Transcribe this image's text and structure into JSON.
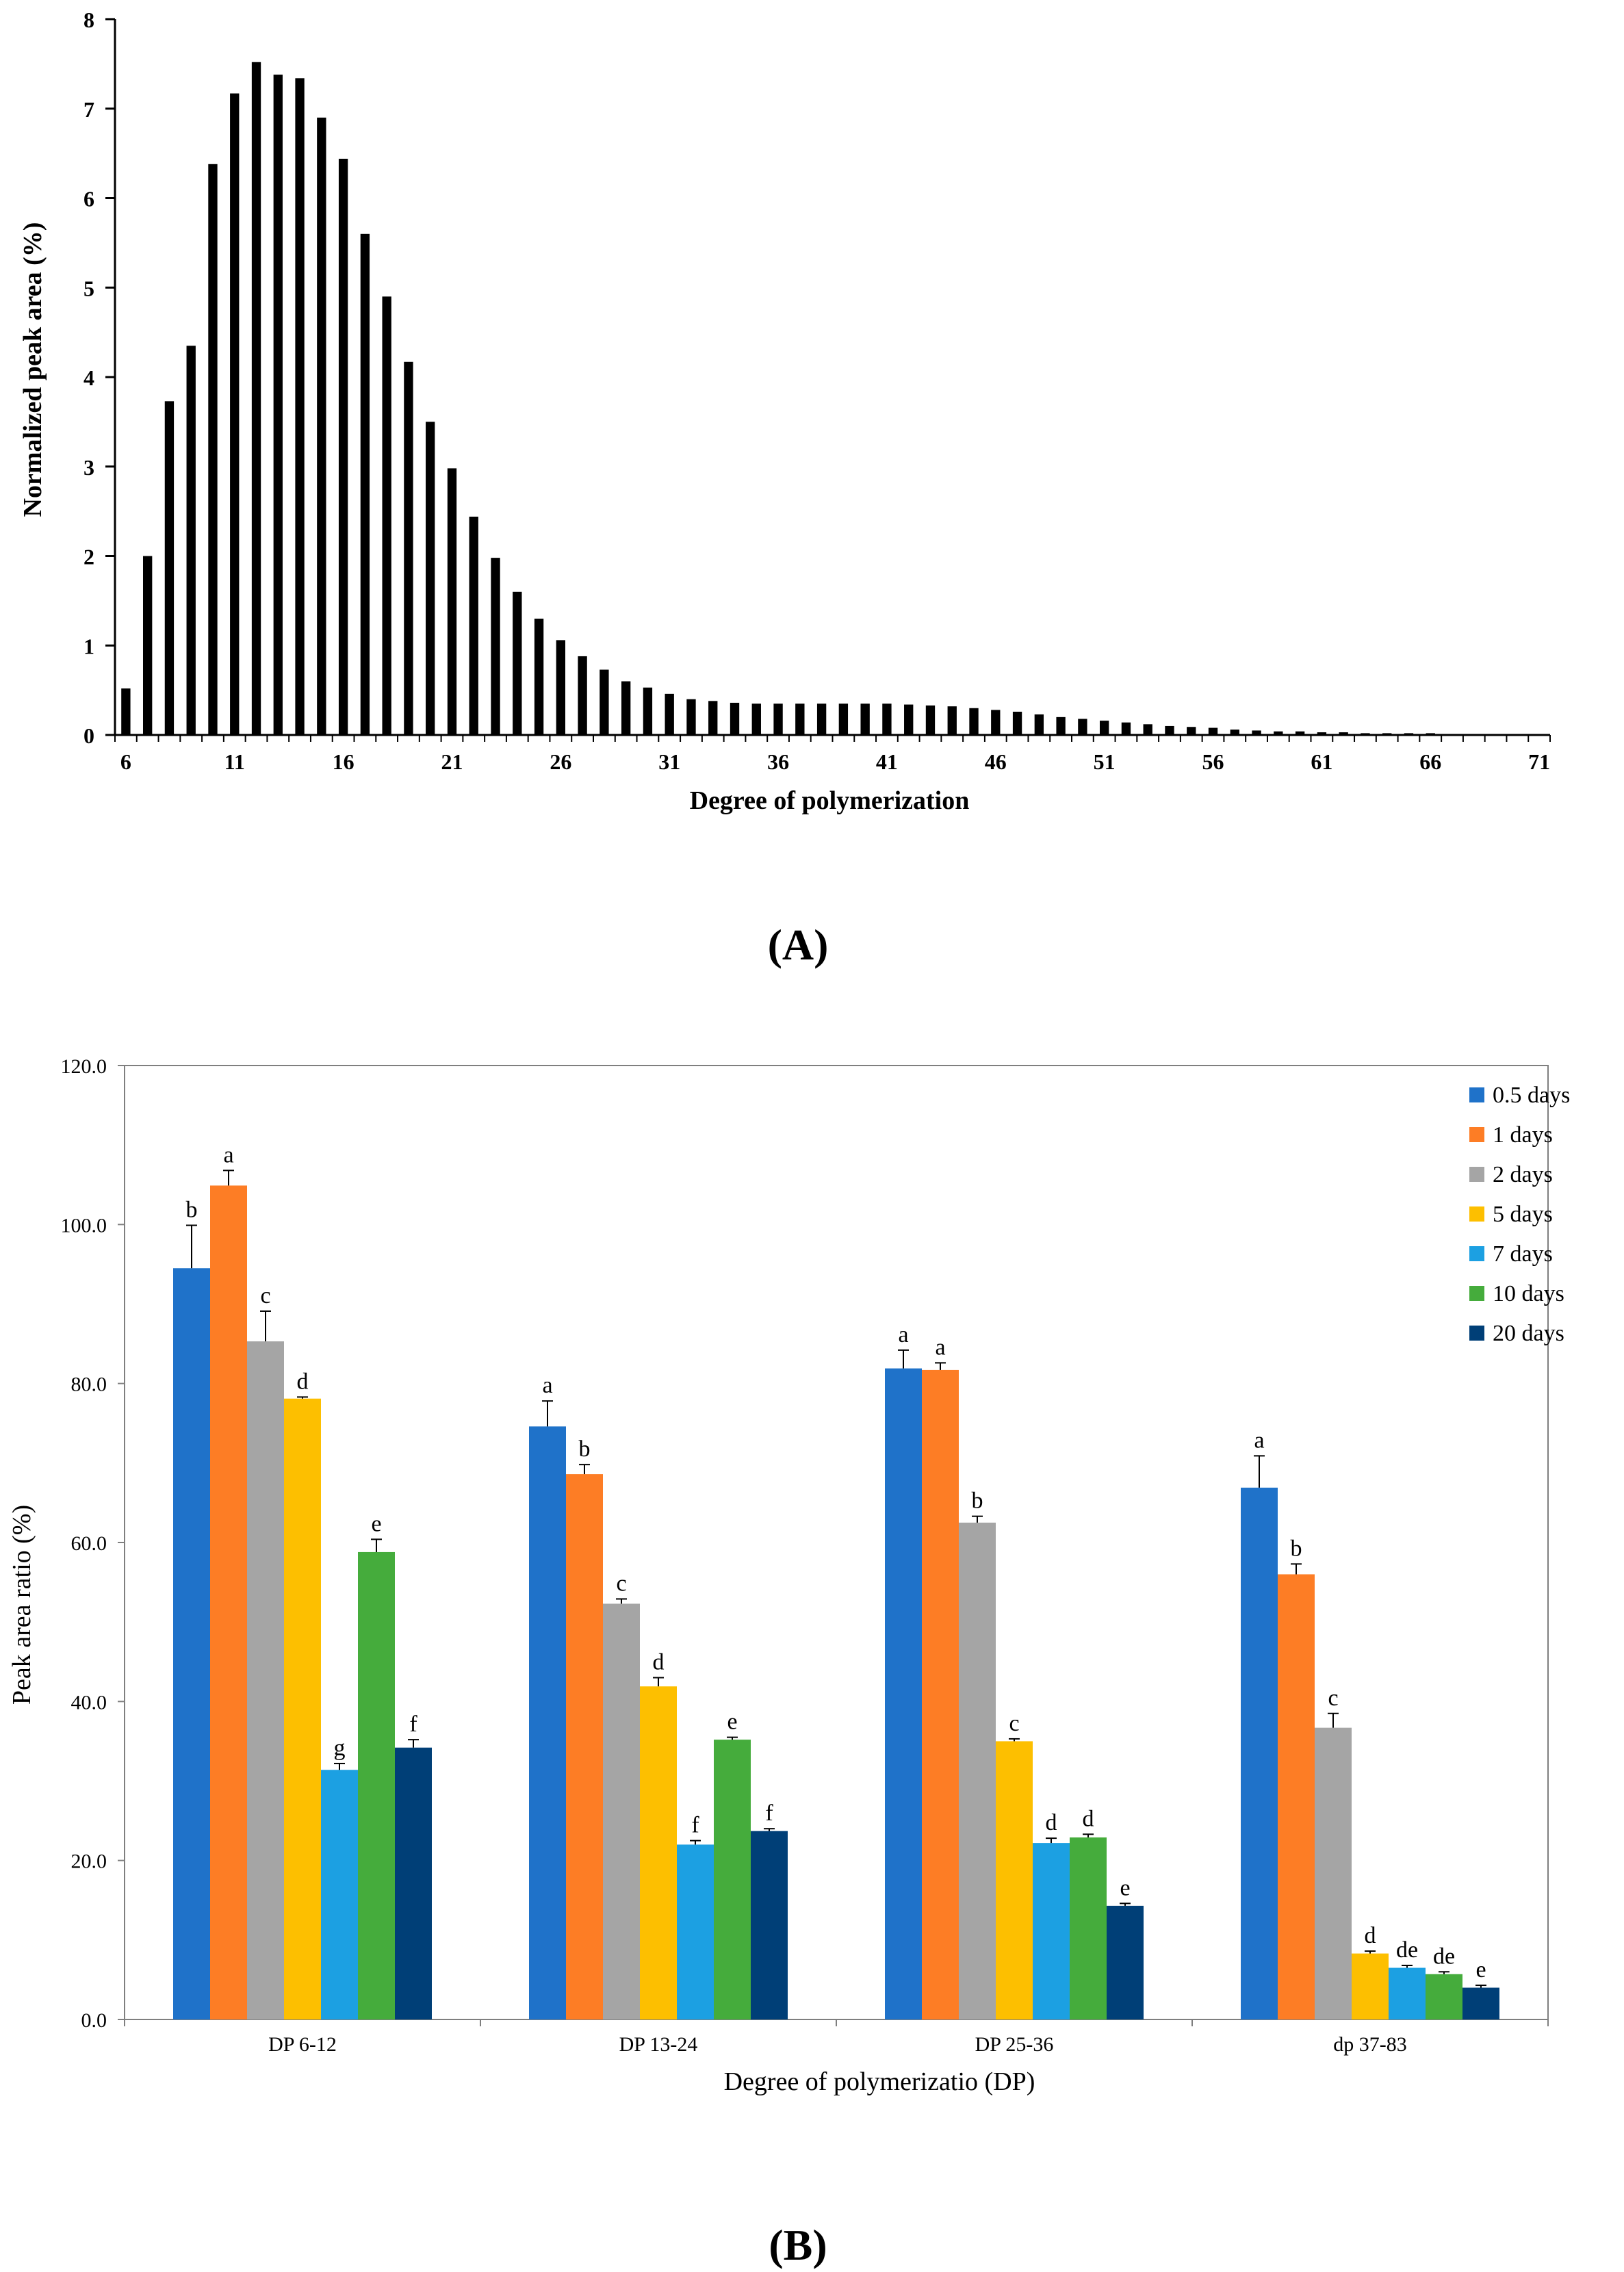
{
  "chart_data": [
    {
      "panel": "A",
      "type": "bar",
      "xlabel": "Degree of polymerization",
      "ylabel": "Normalized peak area (%)",
      "ylim": [
        0,
        8
      ],
      "yticks": [
        "0",
        "1",
        "2",
        "3",
        "4",
        "5",
        "6",
        "7",
        "8"
      ],
      "xtick_labels": [
        "6",
        "11",
        "16",
        "21",
        "26",
        "31",
        "36",
        "41",
        "46",
        "51",
        "56",
        "61",
        "66",
        "71"
      ],
      "categories": [
        6,
        7,
        8,
        9,
        10,
        11,
        12,
        13,
        14,
        15,
        16,
        17,
        18,
        19,
        20,
        21,
        22,
        23,
        24,
        25,
        26,
        27,
        28,
        29,
        30,
        31,
        32,
        33,
        34,
        35,
        36,
        37,
        38,
        39,
        40,
        41,
        42,
        43,
        44,
        45,
        46,
        47,
        48,
        49,
        50,
        51,
        52,
        53,
        54,
        55,
        56,
        57,
        58,
        59,
        60,
        61,
        62,
        63,
        64,
        65,
        66,
        67,
        68,
        69,
        70,
        71
      ],
      "values": [
        0.52,
        2.0,
        3.73,
        4.35,
        6.38,
        7.17,
        7.52,
        7.38,
        7.34,
        6.9,
        6.44,
        5.6,
        4.9,
        4.17,
        3.5,
        2.98,
        2.44,
        1.98,
        1.6,
        1.3,
        1.06,
        0.88,
        0.73,
        0.6,
        0.53,
        0.46,
        0.4,
        0.38,
        0.36,
        0.35,
        0.35,
        0.35,
        0.35,
        0.35,
        0.35,
        0.35,
        0.34,
        0.33,
        0.32,
        0.3,
        0.28,
        0.26,
        0.23,
        0.2,
        0.18,
        0.16,
        0.14,
        0.12,
        0.1,
        0.09,
        0.08,
        0.06,
        0.05,
        0.04,
        0.04,
        0.03,
        0.03,
        0.02,
        0.02,
        0.02,
        0.02,
        0.01,
        0.01,
        0.01,
        0.01,
        0.01
      ],
      "color": "#000000",
      "caption": "(A)"
    },
    {
      "panel": "B",
      "type": "bar",
      "xlabel": "Degree of polymerizatio (DP)",
      "ylabel": "Peak area ratio (%)",
      "ylim": [
        0,
        120
      ],
      "yticks": [
        "0.0",
        "20.0",
        "40.0",
        "60.0",
        "80.0",
        "100.0",
        "120.0"
      ],
      "categories": [
        "DP 6-12",
        "DP 13-24",
        "DP 25-36",
        "dp 37-83"
      ],
      "legend_position": "top-right",
      "series": [
        {
          "name": "0.5 days",
          "color": "#1f72c9",
          "values": [
            94.5,
            74.6,
            81.9,
            66.9
          ],
          "errors": [
            5.4,
            3.2,
            2.3,
            4.0
          ],
          "letters": [
            "b",
            "a",
            "a",
            "a"
          ]
        },
        {
          "name": "1 days",
          "color": "#fd7d25",
          "values": [
            104.9,
            68.6,
            81.7,
            56.0
          ],
          "errors": [
            1.9,
            1.2,
            0.9,
            1.3
          ],
          "letters": [
            "a",
            "b",
            "a",
            "b"
          ]
        },
        {
          "name": "2 days",
          "color": "#a5a5a5",
          "values": [
            85.3,
            52.3,
            62.5,
            36.7
          ],
          "errors": [
            3.8,
            0.6,
            0.8,
            1.8
          ],
          "letters": [
            "c",
            "c",
            "b",
            "c"
          ]
        },
        {
          "name": "5 days",
          "color": "#fdbf00",
          "values": [
            78.1,
            41.9,
            35.0,
            8.3
          ],
          "errors": [
            0.2,
            1.1,
            0.3,
            0.3
          ],
          "letters": [
            "d",
            "d",
            "c",
            "d"
          ]
        },
        {
          "name": "7 days",
          "color": "#1ca0e2",
          "values": [
            31.4,
            22.0,
            22.2,
            6.5
          ],
          "errors": [
            0.8,
            0.5,
            0.6,
            0.3
          ],
          "letters": [
            "g",
            "f",
            "d",
            "de"
          ]
        },
        {
          "name": "10 days",
          "color": "#45ac3c",
          "values": [
            58.8,
            35.2,
            22.9,
            5.7
          ],
          "errors": [
            1.6,
            0.3,
            0.4,
            0.3
          ],
          "letters": [
            "e",
            "e",
            "d",
            "de"
          ]
        },
        {
          "name": "20 days",
          "color": "#003f77",
          "values": [
            34.2,
            23.7,
            14.3,
            4.0
          ],
          "errors": [
            1.0,
            0.3,
            0.3,
            0.3
          ],
          "letters": [
            "f",
            "f",
            "e",
            "e"
          ]
        }
      ],
      "caption": "(B)"
    }
  ]
}
